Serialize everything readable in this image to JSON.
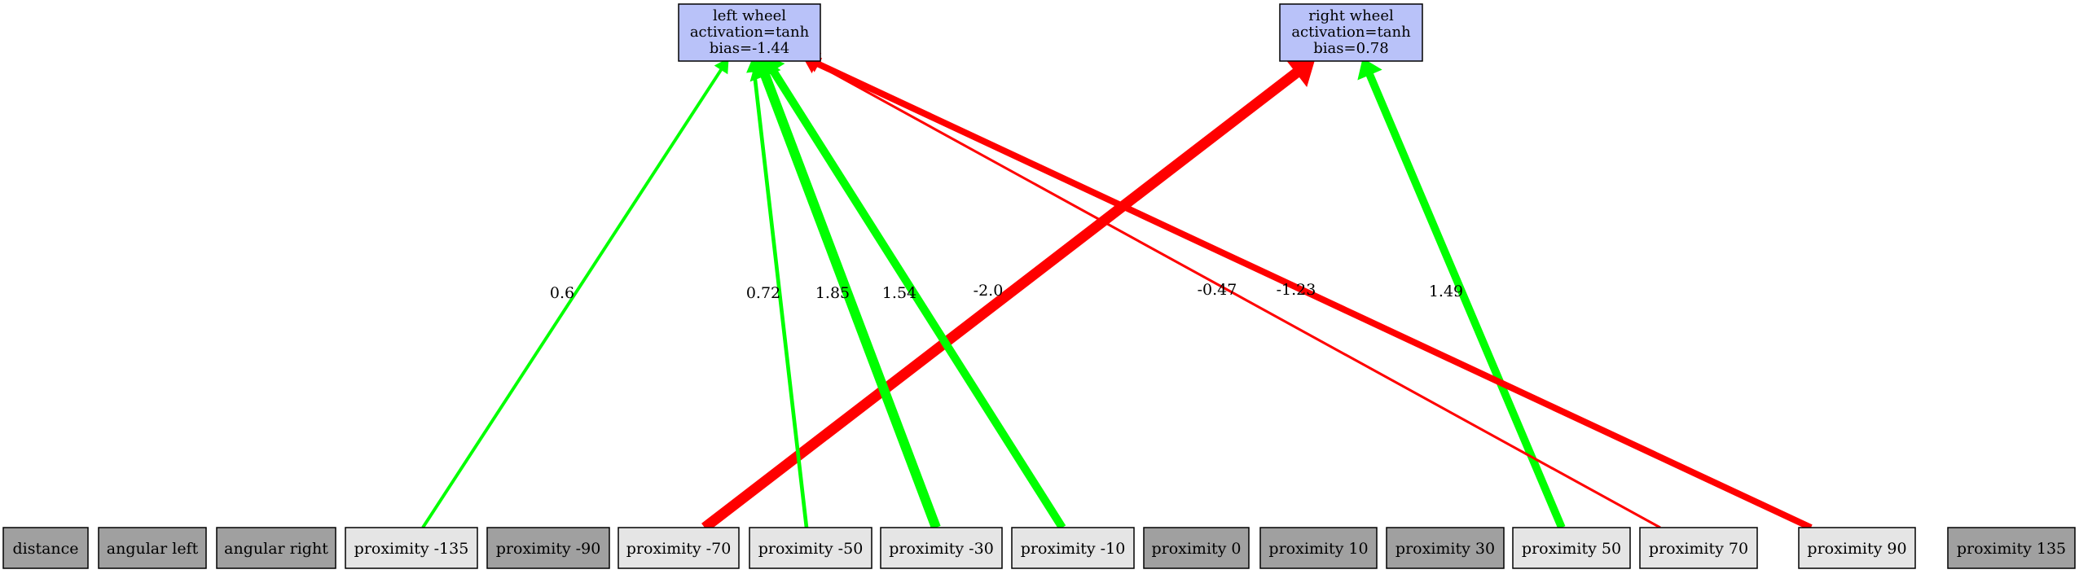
{
  "outputs": [
    {
      "id": "left",
      "lines": [
        "left wheel",
        "activation=tanh",
        "bias=-1.44"
      ]
    },
    {
      "id": "right",
      "lines": [
        "right wheel",
        "activation=tanh",
        "bias=0.78"
      ]
    }
  ],
  "inputs": [
    {
      "id": "distance",
      "label": "distance",
      "active": false
    },
    {
      "id": "angular_left",
      "label": "angular left",
      "active": false
    },
    {
      "id": "angular_right",
      "label": "angular right",
      "active": false
    },
    {
      "id": "p_m135",
      "label": "proximity -135",
      "active": true
    },
    {
      "id": "p_m90",
      "label": "proximity -90",
      "active": false
    },
    {
      "id": "p_m70",
      "label": "proximity -70",
      "active": true
    },
    {
      "id": "p_m50",
      "label": "proximity -50",
      "active": true
    },
    {
      "id": "p_m30",
      "label": "proximity -30",
      "active": true
    },
    {
      "id": "p_m10",
      "label": "proximity -10",
      "active": true
    },
    {
      "id": "p_0",
      "label": "proximity 0",
      "active": false
    },
    {
      "id": "p_10",
      "label": "proximity 10",
      "active": false
    },
    {
      "id": "p_30",
      "label": "proximity 30",
      "active": false
    },
    {
      "id": "p_50",
      "label": "proximity 50",
      "active": true
    },
    {
      "id": "p_70",
      "label": "proximity 70",
      "active": true
    },
    {
      "id": "p_90",
      "label": "proximity 90",
      "active": true
    },
    {
      "id": "p_135",
      "label": "proximity 135",
      "active": false
    }
  ],
  "edges": [
    {
      "from": "p_m135",
      "to": "left",
      "weight": 0.6,
      "label": "0.6"
    },
    {
      "from": "p_m70",
      "to": "right",
      "weight": -2.0,
      "label": "-2.0"
    },
    {
      "from": "p_m50",
      "to": "left",
      "weight": 0.72,
      "label": "0.72"
    },
    {
      "from": "p_m30",
      "to": "left",
      "weight": 1.85,
      "label": "1.85"
    },
    {
      "from": "p_m10",
      "to": "left",
      "weight": 1.54,
      "label": "1.54"
    },
    {
      "from": "p_50",
      "to": "right",
      "weight": 1.49,
      "label": "1.49"
    },
    {
      "from": "p_70",
      "to": "left",
      "weight": -0.47,
      "label": "-0.47"
    },
    {
      "from": "p_90",
      "to": "left",
      "weight": -1.23,
      "label": "-1.23"
    }
  ],
  "colors": {
    "output_fill": "#b9c2f9",
    "active_fill": "#e5e5e5",
    "inactive_fill": "#a0a0a0",
    "positive_edge": "#00ff00",
    "negative_edge": "#ff0000",
    "border": "#000000"
  }
}
